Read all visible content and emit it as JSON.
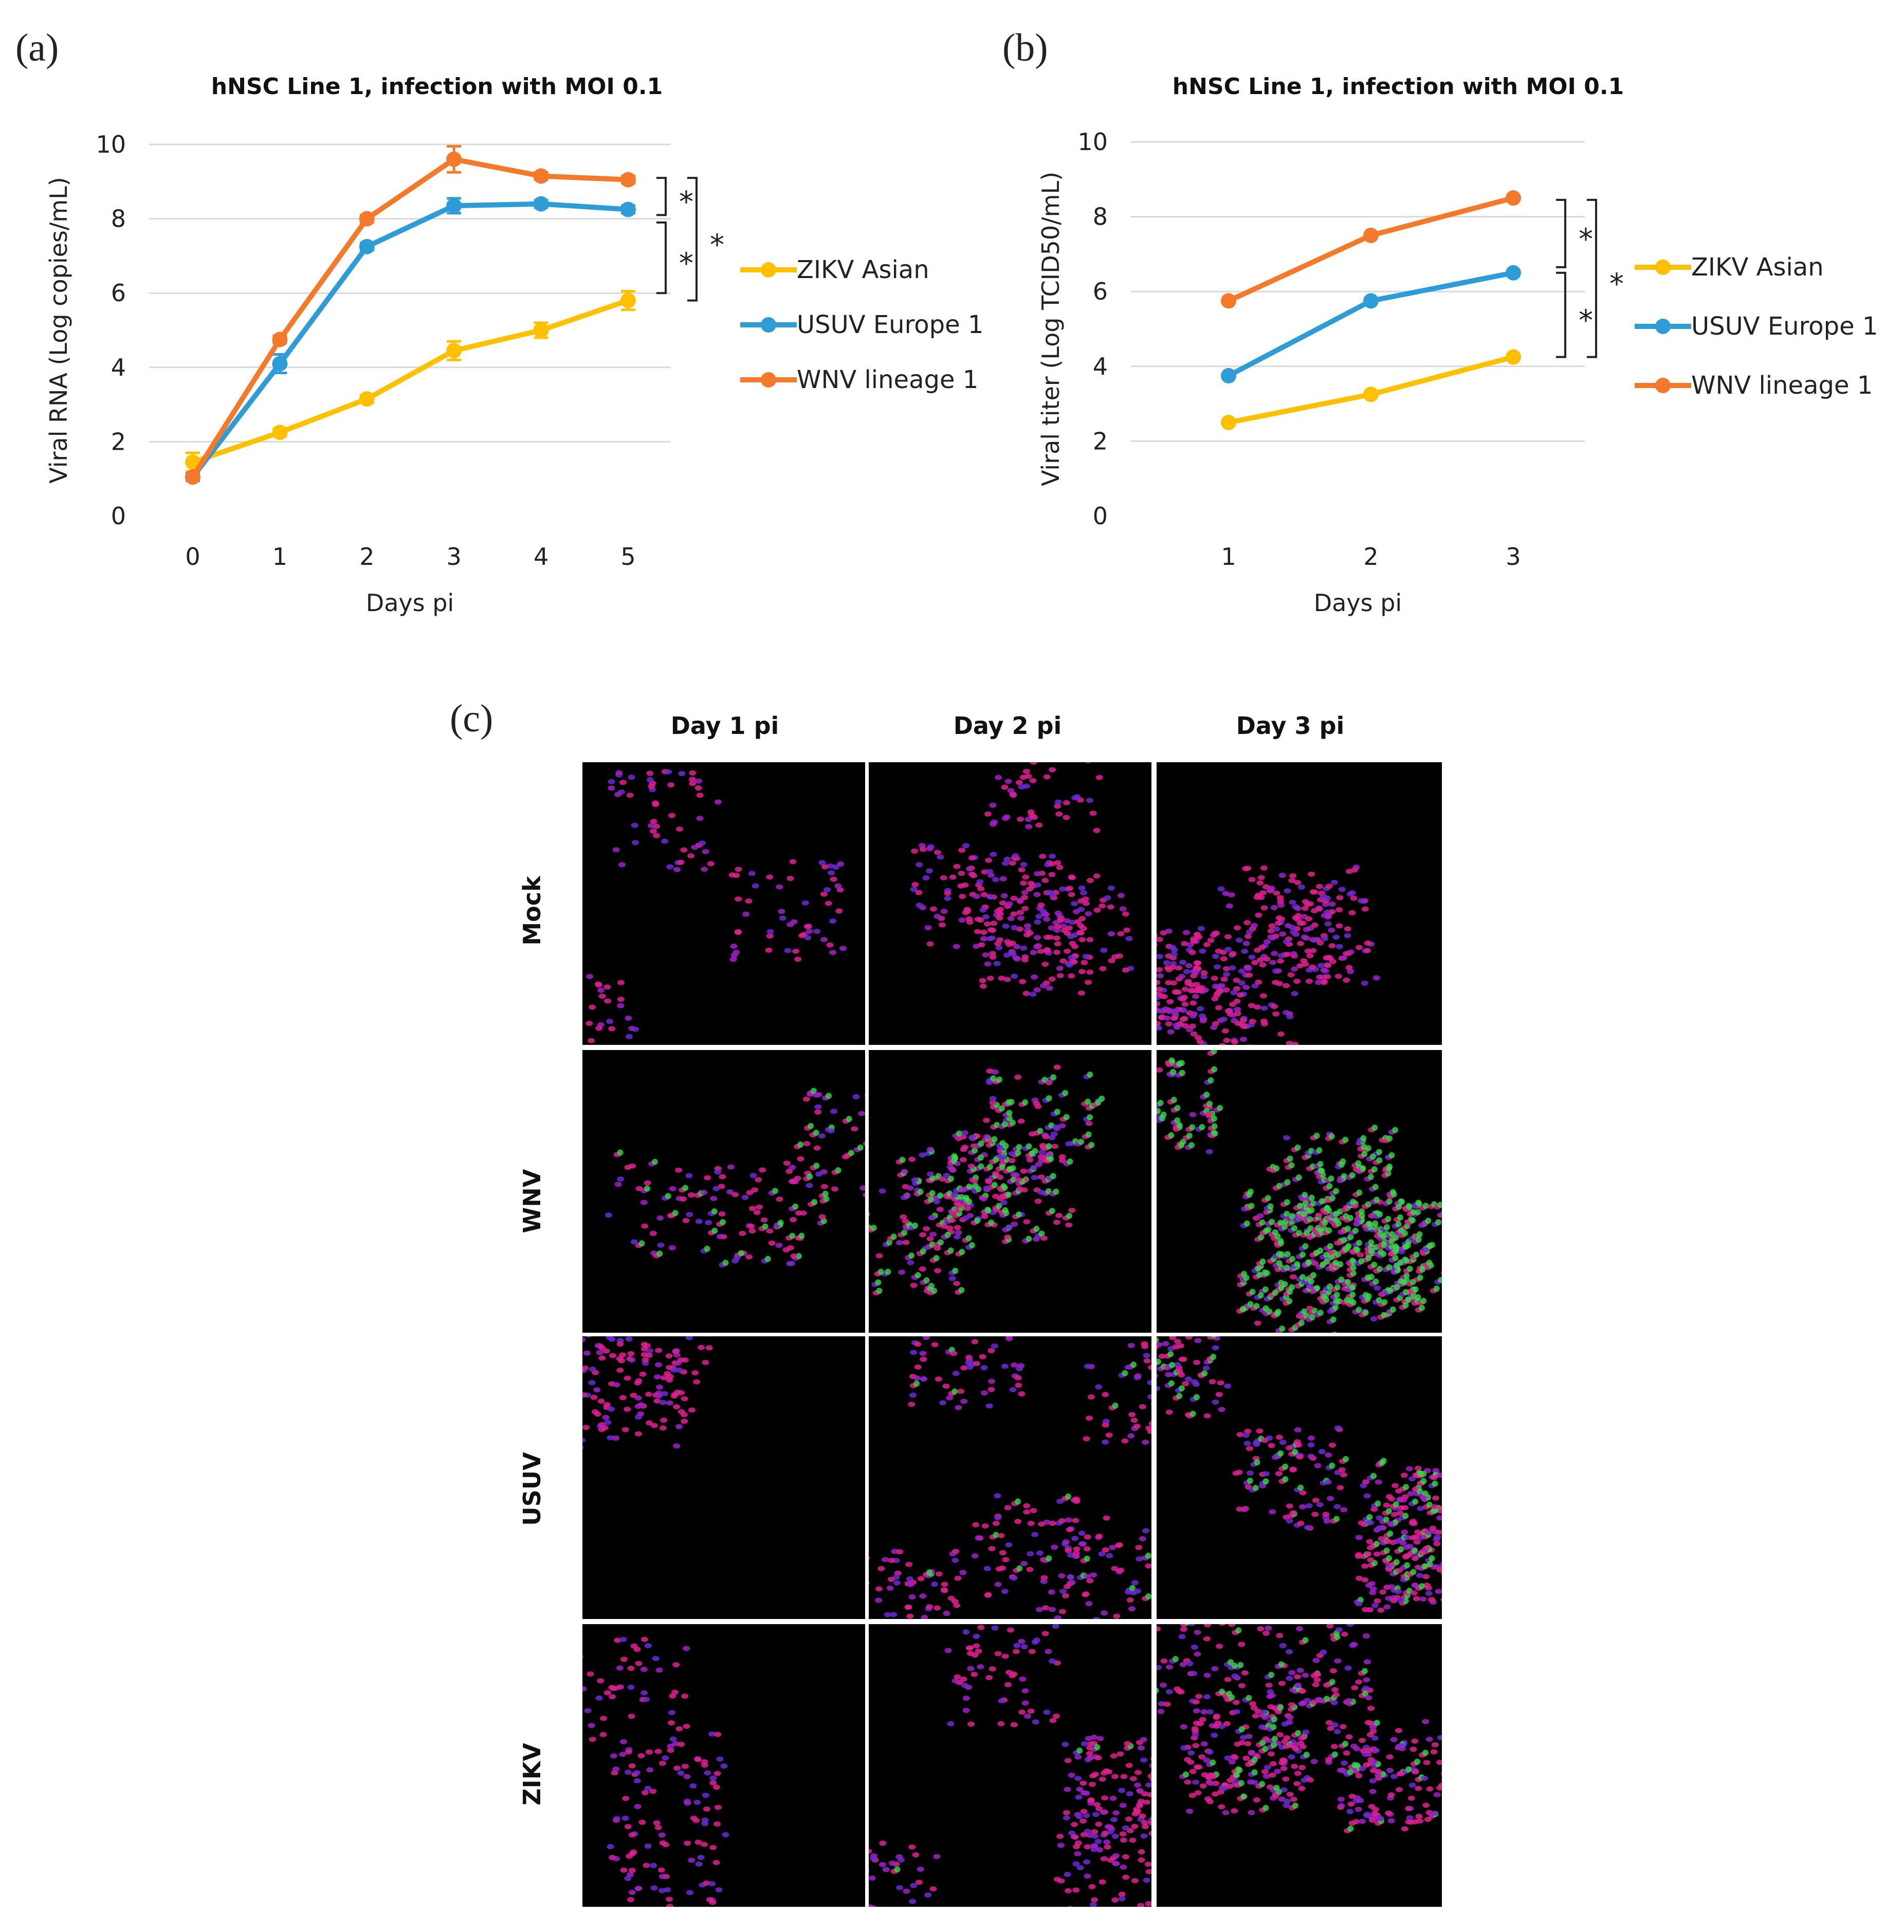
{
  "panels": {
    "a": "(a)",
    "b": "(b)",
    "c": "(c)"
  },
  "chart_data": [
    {
      "type": "line",
      "title": "hNSC Line 1, infection with MOI 0.1",
      "xlabel": "Days pi",
      "ylabel": "Viral RNA (Log copies/mL)",
      "x": [
        0,
        1,
        2,
        3,
        4,
        5
      ],
      "ylim": [
        0,
        10
      ],
      "yticks": [
        0,
        2,
        4,
        6,
        8,
        10
      ],
      "grid": true,
      "legend": "right",
      "series": [
        {
          "name": "ZIKV Asian",
          "color": "#FFC000",
          "values": [
            1.45,
            2.25,
            3.15,
            4.45,
            5.0,
            5.8
          ],
          "err": [
            0.25,
            0.1,
            0.1,
            0.25,
            0.2,
            0.25
          ]
        },
        {
          "name": "USUV Europe 1",
          "color": "#2E9CD6",
          "values": [
            1.05,
            4.1,
            7.25,
            8.35,
            8.4,
            8.25
          ],
          "err": [
            0.1,
            0.25,
            0.1,
            0.2,
            0.1,
            0.1
          ]
        },
        {
          "name": "WNV lineage 1",
          "color": "#F5792A",
          "values": [
            1.05,
            4.75,
            8.0,
            9.6,
            9.15,
            9.05
          ],
          "err": [
            0.05,
            0.1,
            0.1,
            0.35,
            0.1,
            0.1
          ]
        }
      ],
      "significance": [
        "*",
        "*",
        "*"
      ]
    },
    {
      "type": "line",
      "title": "hNSC Line 1, infection with MOI 0.1",
      "xlabel": "Days pi",
      "ylabel": "Viral titer (Log TCID50/mL)",
      "x": [
        1,
        2,
        3
      ],
      "ylim": [
        0,
        10
      ],
      "yticks": [
        0,
        2,
        4,
        6,
        8,
        10
      ],
      "grid": true,
      "legend": "right",
      "series": [
        {
          "name": "ZIKV Asian",
          "color": "#FFC000",
          "values": [
            2.5,
            3.25,
            4.25
          ]
        },
        {
          "name": "USUV Europe 1",
          "color": "#2E9CD6",
          "values": [
            3.75,
            5.75,
            6.5
          ]
        },
        {
          "name": "WNV lineage 1",
          "color": "#F5792A",
          "values": [
            5.75,
            7.5,
            8.5
          ]
        }
      ],
      "significance": [
        "*",
        "*",
        "*"
      ]
    }
  ],
  "micrographs": {
    "columns": [
      "Day 1 pi",
      "Day 2 pi",
      "Day 3 pi"
    ],
    "rows": [
      {
        "label": "Mock",
        "green": [
          0,
          0,
          0
        ]
      },
      {
        "label": "WNV",
        "green": [
          0.25,
          0.45,
          0.9
        ]
      },
      {
        "label": "USUV",
        "green": [
          0,
          0.05,
          0.3
        ]
      },
      {
        "label": "ZIKV",
        "green": [
          0,
          0.02,
          0.12
        ]
      }
    ]
  }
}
